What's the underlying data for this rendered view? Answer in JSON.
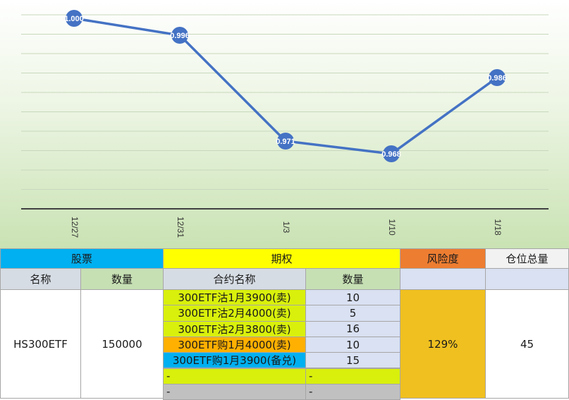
{
  "chart_data": {
    "type": "line",
    "categories": [
      "12/27",
      "12/31",
      "1/3",
      "1/10",
      "1/18"
    ],
    "series": [
      {
        "values": [
          1.0,
          0.996,
          0.971,
          0.968,
          0.986
        ],
        "labels": [
          "1.000",
          "0.996",
          "0.971",
          "0.968",
          "0.986"
        ]
      }
    ],
    "ylim": [
      0.955,
      1.001
    ],
    "grid": true,
    "line_color": "#4472c4",
    "title": "",
    "xlabel": "",
    "ylabel": ""
  },
  "table": {
    "groups": {
      "stock": "股票",
      "option": "期权",
      "risk": "风险度",
      "position": "仓位总量"
    },
    "headers": {
      "name": "名称",
      "qty": "数量",
      "contract": "合约名称",
      "contract_qty": "数量"
    },
    "stock": {
      "name": "HS300ETF",
      "qty": "150000"
    },
    "options": [
      {
        "name": "300ETF沽1月3900(卖)",
        "qty": "10",
        "color": "#d9f00c"
      },
      {
        "name": "300ETF沽2月4000(卖)",
        "qty": "5",
        "color": "#d9f00c"
      },
      {
        "name": "300ETF沽2月3800(卖)",
        "qty": "16",
        "color": "#d9f00c"
      },
      {
        "name": "300ETF购1月4000(卖)",
        "qty": "10",
        "color": "#ffb000"
      },
      {
        "name": "300ETF购1月3900(备兑)",
        "qty": "15",
        "color": "#00b0f0"
      },
      {
        "name": "-",
        "qty": "-",
        "color": "#d9f00c"
      },
      {
        "name": "-",
        "qty": "-",
        "color": "#c0c0c0"
      }
    ],
    "risk": "129%",
    "position": "45"
  },
  "colors": {
    "stock_header": "#00b0f0",
    "option_header": "#ffff00",
    "risk_header": "#ed7d31",
    "position_header": "#f2f2f2",
    "subheader_gray": "#d6dce4",
    "subheader_green": "#c6e0b4",
    "subheader_blue": "#d9e1f2",
    "qty_cell": "#d9e1f2",
    "risk_cell": "#f0c020"
  }
}
